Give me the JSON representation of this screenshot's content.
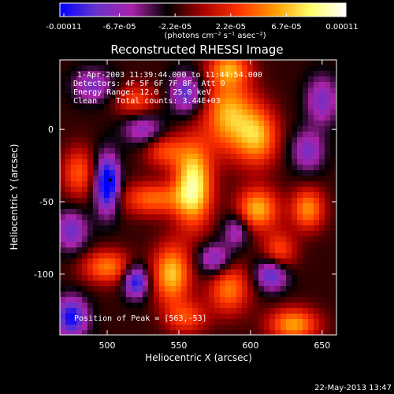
{
  "colorbar": {
    "tick_labels": [
      "-0.00011",
      "-6.7e-05",
      "-2.2e-05",
      "2.2e-05",
      "6.7e-05",
      "0.00011"
    ],
    "unit_label": "(photons cm⁻² s⁻¹ asec⁻²)",
    "min": -0.00011,
    "max": 0.00011,
    "colormap": [
      "#0000ff",
      "#6633cc",
      "#aa22aa",
      "#000000",
      "#aa0000",
      "#ff3300",
      "#ff9900",
      "#ffff66",
      "#ffffff"
    ]
  },
  "chart_data": {
    "type": "heatmap",
    "title": "Reconstructed RHESSI Image",
    "xlabel": "Heliocentric X (arcsec)",
    "ylabel": "Heliocentric Y (arcsec)",
    "xlim": [
      467,
      660
    ],
    "ylim": [
      -142,
      48
    ],
    "xticks": [
      500,
      550,
      600,
      650
    ],
    "yticks": [
      0,
      -50,
      -100
    ],
    "peak": [
      563,
      -53
    ],
    "annotations": [
      "1-Apr-2003 11:39:44.000 to 11:44:54.000",
      "Detectors: 4F 5F 6F 7F 8F, Att 0",
      "Energy Range: 12.0 - 25.0 keV",
      "Clean    Total counts: 3.44E+03",
      "Position of Peak = [563,-53]"
    ],
    "blobs": [
      {
        "x": 560,
        "y": -38,
        "sx": 9,
        "sy": 20,
        "amp": 1.0
      },
      {
        "x": 532,
        "y": -48,
        "sx": 16,
        "sy": 8,
        "amp": 0.55
      },
      {
        "x": 585,
        "y": 10,
        "sx": 12,
        "sy": 18,
        "amp": 0.75
      },
      {
        "x": 585,
        "y": 42,
        "sx": 10,
        "sy": 8,
        "amp": 0.6
      },
      {
        "x": 605,
        "y": -55,
        "sx": 10,
        "sy": 10,
        "amp": 0.75
      },
      {
        "x": 640,
        "y": -55,
        "sx": 8,
        "sy": 10,
        "amp": 0.65
      },
      {
        "x": 545,
        "y": -100,
        "sx": 9,
        "sy": 14,
        "amp": 0.8
      },
      {
        "x": 630,
        "y": -135,
        "sx": 12,
        "sy": 8,
        "amp": 0.7
      },
      {
        "x": 500,
        "y": -95,
        "sx": 12,
        "sy": 8,
        "amp": 0.6
      },
      {
        "x": 605,
        "y": -5,
        "sx": 10,
        "sy": 14,
        "amp": 0.7
      },
      {
        "x": 585,
        "y": -110,
        "sx": 10,
        "sy": 12,
        "amp": 0.6
      },
      {
        "x": 480,
        "y": -30,
        "sx": 8,
        "sy": 12,
        "amp": 0.5
      },
      {
        "x": 520,
        "y": 20,
        "sx": 10,
        "sy": 8,
        "amp": 0.45
      },
      {
        "x": 540,
        "y": -15,
        "sx": 10,
        "sy": 8,
        "amp": 0.45
      },
      {
        "x": 620,
        "y": -85,
        "sx": 8,
        "sy": 10,
        "amp": 0.5
      },
      {
        "x": 555,
        "y": -130,
        "sx": 10,
        "sy": 8,
        "amp": 0.45
      },
      {
        "x": 500,
        "y": -38,
        "sx": 6,
        "sy": 14,
        "amp": -1.0
      },
      {
        "x": 520,
        "y": -105,
        "sx": 6,
        "sy": 8,
        "amp": -0.8
      },
      {
        "x": 475,
        "y": -130,
        "sx": 8,
        "sy": 10,
        "amp": -0.8
      },
      {
        "x": 555,
        "y": 25,
        "sx": 8,
        "sy": 10,
        "amp": -0.6
      },
      {
        "x": 615,
        "y": -100,
        "sx": 8,
        "sy": 8,
        "amp": -0.7
      },
      {
        "x": 590,
        "y": -70,
        "sx": 6,
        "sy": 8,
        "amp": -0.45
      },
      {
        "x": 650,
        "y": 20,
        "sx": 8,
        "sy": 12,
        "amp": -0.5
      },
      {
        "x": 525,
        "y": 0,
        "sx": 10,
        "sy": 8,
        "amp": -0.45
      },
      {
        "x": 575,
        "y": -90,
        "sx": 8,
        "sy": 8,
        "amp": -0.55
      },
      {
        "x": 640,
        "y": -15,
        "sx": 8,
        "sy": 10,
        "amp": -0.5
      },
      {
        "x": 490,
        "y": 30,
        "sx": 10,
        "sy": 8,
        "amp": -0.5
      },
      {
        "x": 475,
        "y": -70,
        "sx": 8,
        "sy": 10,
        "amp": -0.55
      }
    ]
  },
  "footer": {
    "timestamp": "22-May-2013 13:47"
  }
}
